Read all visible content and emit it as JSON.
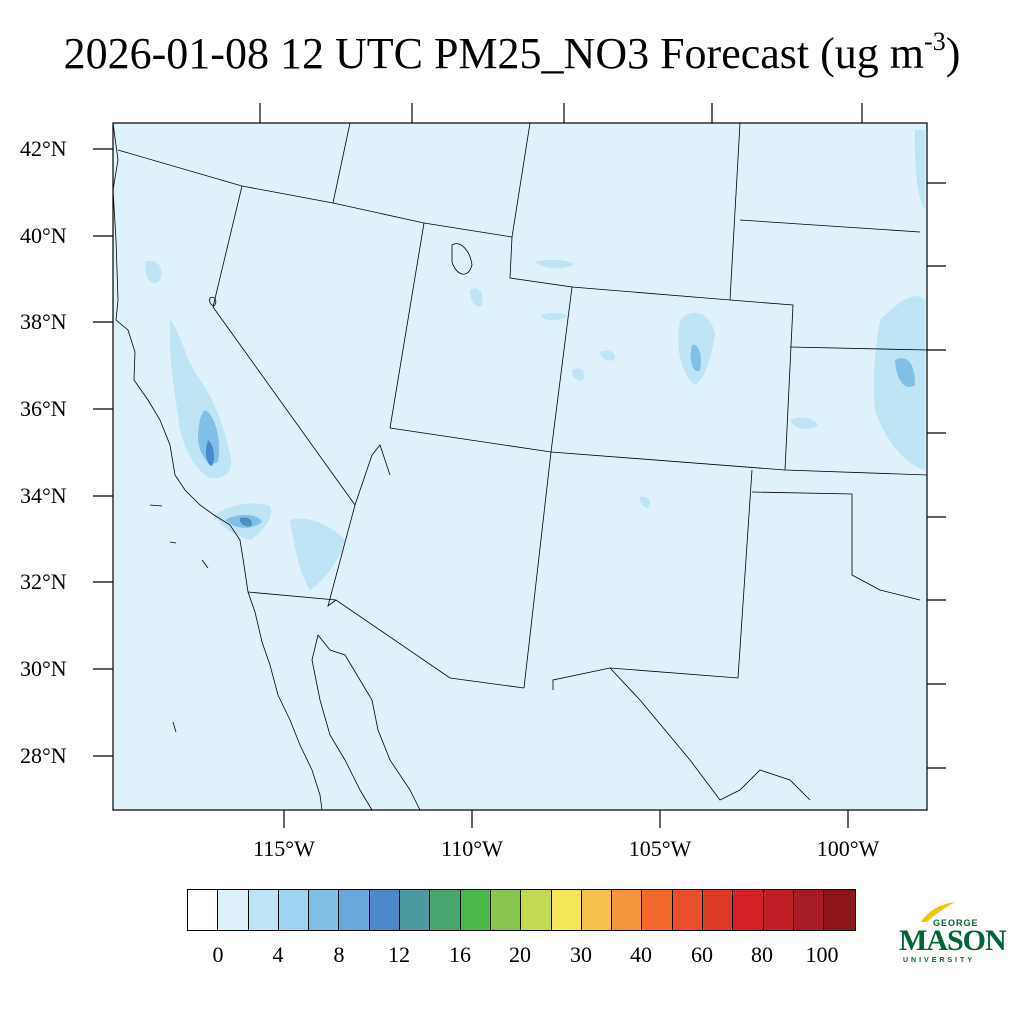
{
  "title": {
    "main": "2026-01-08 12 UTC PM25_NO3 Forecast (ug m",
    "superscript": "-3",
    "close": ")"
  },
  "map": {
    "background_color": "#dff1fb",
    "lat_labels": [
      "42°N",
      "40°N",
      "38°N",
      "36°N",
      "34°N",
      "32°N",
      "30°N",
      "28°N"
    ],
    "lon_labels": [
      "115°W",
      "110°W",
      "105°W",
      "100°W"
    ]
  },
  "colorbar": {
    "colors": [
      "#ffffff",
      "#dff1fb",
      "#bfe4f6",
      "#9dd5f2",
      "#82bfe6",
      "#68a8dc",
      "#4a8acb",
      "#4a9aa0",
      "#4aa670",
      "#4ab84a",
      "#8ac64d",
      "#c2d953",
      "#f5e65a",
      "#f7c04b",
      "#f5963c",
      "#f26a2b",
      "#e84f2a",
      "#dd3a26",
      "#d42026",
      "#bf1e26",
      "#a51c24",
      "#8e1519"
    ],
    "labels": [
      "0",
      "4",
      "8",
      "12",
      "16",
      "20",
      "30",
      "40",
      "60",
      "80",
      "100"
    ]
  },
  "logo": {
    "line1": "GEORGE",
    "line2": "MASON",
    "line3": "UNIVERSITY",
    "color": "#006633"
  }
}
